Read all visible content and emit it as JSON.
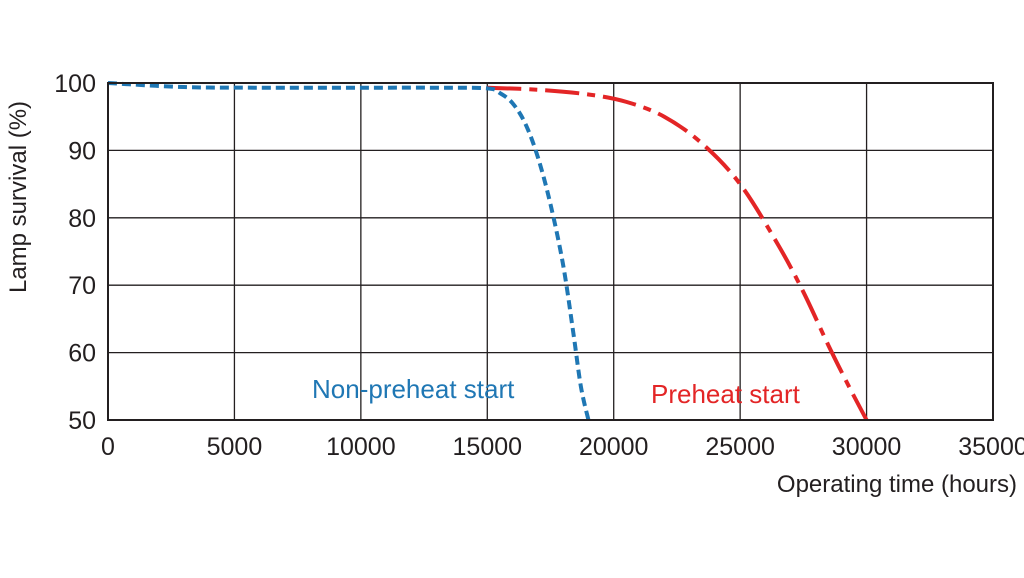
{
  "chart_data": {
    "type": "line",
    "title": "",
    "xlabel": "Operating time (hours)",
    "ylabel": "Lamp survival  (%)",
    "xlim": [
      0,
      35000
    ],
    "ylim": [
      50,
      100
    ],
    "x_ticks": [
      0,
      5000,
      10000,
      15000,
      20000,
      25000,
      30000,
      35000
    ],
    "y_ticks": [
      50,
      60,
      70,
      80,
      90,
      100
    ],
    "grid": true,
    "series": [
      {
        "name": "Non-preheat start",
        "color": "#1f77b4",
        "style": "dashed",
        "points": [
          [
            0,
            100
          ],
          [
            3000,
            99.4
          ],
          [
            6000,
            99.3
          ],
          [
            10000,
            99.3
          ],
          [
            13000,
            99.3
          ],
          [
            15000,
            99.2
          ],
          [
            15500,
            98.5
          ],
          [
            16000,
            97
          ],
          [
            16500,
            94
          ],
          [
            17000,
            89
          ],
          [
            17500,
            82
          ],
          [
            18000,
            73
          ],
          [
            18400,
            63
          ],
          [
            18700,
            55
          ],
          [
            19000,
            50
          ]
        ]
      },
      {
        "name": "Preheat start",
        "color": "#e32526",
        "style": "dash-dot",
        "points": [
          [
            15000,
            99.3
          ],
          [
            17000,
            99
          ],
          [
            19000,
            98.3
          ],
          [
            20500,
            97.2
          ],
          [
            22000,
            95
          ],
          [
            23500,
            91
          ],
          [
            25000,
            85
          ],
          [
            26500,
            76
          ],
          [
            27500,
            69
          ],
          [
            28500,
            61
          ],
          [
            29300,
            55
          ],
          [
            30000,
            50
          ]
        ]
      }
    ]
  },
  "colors": {
    "axis": "#231f20",
    "grid": "#231f20",
    "blue": "#1f77b4",
    "red": "#e32526"
  }
}
